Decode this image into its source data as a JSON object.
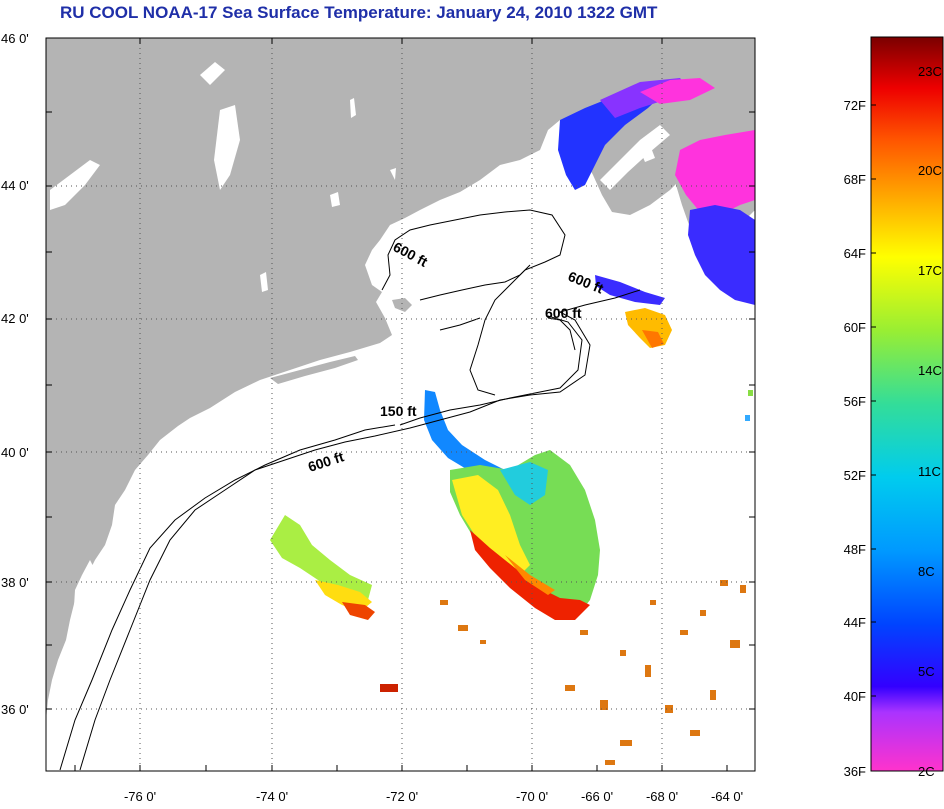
{
  "title": "RU COOL  NOAA-17  Sea Surface Temperature:  January 24, 2010 1322 GMT",
  "colors": {
    "land": "#b4b4b4",
    "title": "#1f2fa8",
    "ocean": "#ffffff"
  },
  "lat_labels": [
    "46 0'",
    "44 0'",
    "42 0'",
    "40 0'",
    "38 0'",
    "36 0'"
  ],
  "lon_labels": [
    "-76 0'",
    "-74 0'",
    "-72 0'",
    "-70 0'",
    "-68 0'",
    "-66 0'",
    "-64 0'"
  ],
  "depth_labels": [
    "600 ft",
    "600 ft",
    "600 ft",
    "150 ft",
    "600 ft"
  ],
  "colorbar": {
    "fahrenheit_labels": [
      "72F",
      "68F",
      "64F",
      "60F",
      "56F",
      "52F",
      "48F",
      "44F",
      "40F",
      "36F"
    ],
    "celsius_labels": [
      "23C",
      "20C",
      "17C",
      "14C",
      "11C",
      "8C",
      "5C",
      "2C"
    ],
    "range_f": [
      36,
      76
    ],
    "stops": [
      "#ff33cc",
      "#aa33ff",
      "#3300ff",
      "#0044ff",
      "#0099ff",
      "#00ccee",
      "#33dd99",
      "#99ee33",
      "#ffff00",
      "#ffaa00",
      "#ff5500",
      "#ee0000",
      "#7a0000"
    ]
  }
}
